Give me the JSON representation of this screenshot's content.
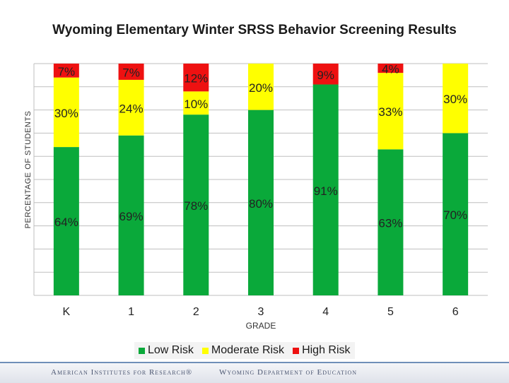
{
  "colors": {
    "low": "#0aa93a",
    "moderate": "#ffff00",
    "high": "#ee1111",
    "grid": "#bfbfbf"
  },
  "footer": {
    "left": "American Institutes for Research®",
    "right": "Wyoming Department of Education"
  },
  "chart_data": {
    "type": "bar",
    "stacked": true,
    "title": "Wyoming Elementary Winter SRSS Behavior Screening Results",
    "xlabel": "GRADE",
    "ylabel": "PERCENTAGE OF STUDENTS",
    "ylim": [
      0,
      100
    ],
    "grid": true,
    "legend": "bottom",
    "categories": [
      "K",
      "1",
      "2",
      "3",
      "4",
      "5",
      "6"
    ],
    "series": [
      {
        "name": "Low Risk",
        "values": [
          64,
          69,
          78,
          80,
          91,
          63,
          70
        ],
        "labels": [
          "64%",
          "69%",
          "78%",
          "80%",
          "91%",
          "63%",
          "70%"
        ]
      },
      {
        "name": "Moderate Risk",
        "values": [
          30,
          24,
          10,
          20,
          0,
          33,
          30
        ],
        "labels": [
          "30%",
          "24%",
          "10%",
          "20%",
          "",
          "33%",
          "30%"
        ]
      },
      {
        "name": "High Risk",
        "values": [
          7,
          7,
          12,
          0,
          9,
          4,
          0
        ],
        "labels": [
          "7%",
          "7%",
          "12%",
          "",
          "9%",
          "4%",
          ""
        ]
      }
    ]
  }
}
